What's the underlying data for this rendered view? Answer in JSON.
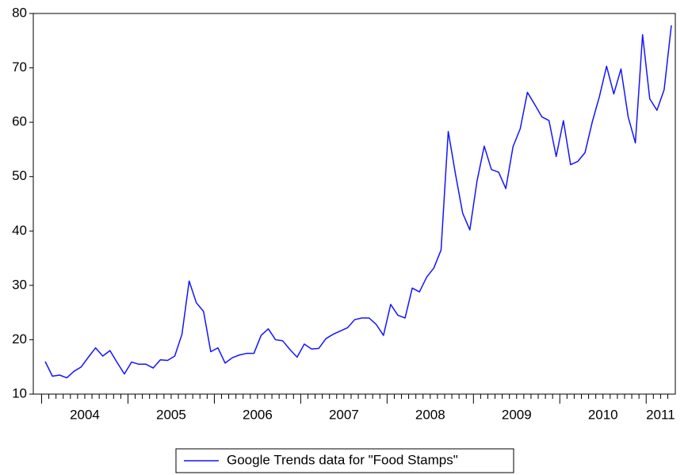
{
  "chart_data": {
    "type": "line",
    "categories": [
      null,
      null,
      null,
      null,
      null,
      null,
      "2004",
      null,
      null,
      null,
      null,
      null,
      null,
      null,
      null,
      null,
      null,
      null,
      "2005",
      null,
      null,
      null,
      null,
      null,
      null,
      null,
      null,
      null,
      null,
      null,
      "2006",
      null,
      null,
      null,
      null,
      null,
      null,
      null,
      null,
      null,
      null,
      null,
      "2007",
      null,
      null,
      null,
      null,
      null,
      null,
      null,
      null,
      null,
      null,
      null,
      "2008",
      null,
      null,
      null,
      null,
      null,
      null,
      null,
      null,
      null,
      null,
      null,
      "2009",
      null,
      null,
      null,
      null,
      null,
      null,
      null,
      null,
      null,
      null,
      null,
      "2010",
      null,
      null,
      null,
      null,
      null,
      null,
      null,
      "2011",
      null
    ],
    "series": [
      {
        "name": "Google Trends data for \"Food Stamps\"",
        "color": "#1414ff",
        "values": [
          16.0,
          13.3,
          13.5,
          13.0,
          14.2,
          15.0,
          16.8,
          18.5,
          17.0,
          18.0,
          15.8,
          13.7,
          15.9,
          15.5,
          15.5,
          14.8,
          16.3,
          16.2,
          17.0,
          21.0,
          30.8,
          26.8,
          25.2,
          17.8,
          18.5,
          15.7,
          16.7,
          17.2,
          17.5,
          17.5,
          20.8,
          22.0,
          20.0,
          19.8,
          18.2,
          16.8,
          19.2,
          18.3,
          18.4,
          20.2,
          21.0,
          21.6,
          22.2,
          23.7,
          24.0,
          24.0,
          22.8,
          20.8,
          26.5,
          24.5,
          24.0,
          29.5,
          28.8,
          31.5,
          33.2,
          36.5,
          58.3,
          50.5,
          43.3,
          40.2,
          49.2,
          55.6,
          51.3,
          50.8,
          47.8,
          55.5,
          58.8,
          65.5,
          63.3,
          61.0,
          60.3,
          53.7,
          60.3,
          52.2,
          52.8,
          54.4,
          60.0,
          64.7,
          70.3,
          65.2,
          69.8,
          61.0,
          56.2,
          76.1,
          64.3,
          62.2,
          66.0,
          77.8
        ]
      }
    ],
    "ylim": [
      10,
      80
    ],
    "yticks": [
      10,
      20,
      30,
      40,
      50,
      60,
      70,
      80
    ],
    "grid": false,
    "legend": "bottom"
  }
}
